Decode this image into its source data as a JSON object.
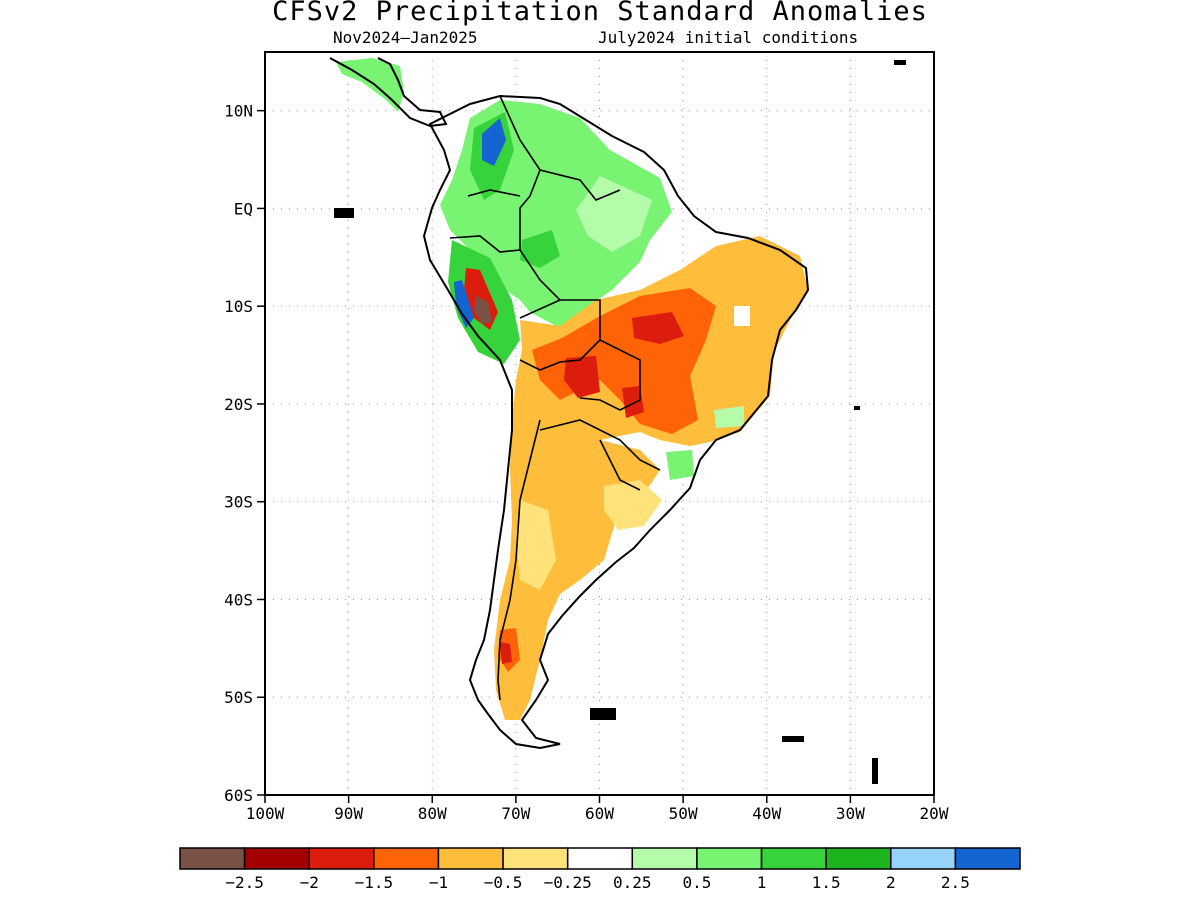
{
  "title": "CFSv2 Precipitation Standard Anomalies",
  "subtitle_left": "Nov2024–Jan2025",
  "subtitle_right": "July2024 initial conditions",
  "map": {
    "lon_range": [
      -100,
      -20
    ],
    "lat_range": [
      -60,
      16
    ],
    "grid": "dotted",
    "lat_ticks": [
      {
        "value": 10,
        "label": "10N"
      },
      {
        "value": 0,
        "label": "EQ"
      },
      {
        "value": -10,
        "label": "10S"
      },
      {
        "value": -20,
        "label": "20S"
      },
      {
        "value": -30,
        "label": "30S"
      },
      {
        "value": -40,
        "label": "40S"
      },
      {
        "value": -50,
        "label": "50S"
      },
      {
        "value": -60,
        "label": "60S"
      }
    ],
    "lon_ticks": [
      {
        "value": -100,
        "label": "100W"
      },
      {
        "value": -90,
        "label": "90W"
      },
      {
        "value": -80,
        "label": "80W"
      },
      {
        "value": -70,
        "label": "70W"
      },
      {
        "value": -60,
        "label": "60W"
      },
      {
        "value": -50,
        "label": "50W"
      },
      {
        "value": -40,
        "label": "40W"
      },
      {
        "value": -30,
        "label": "30W"
      },
      {
        "value": -20,
        "label": "20W"
      }
    ]
  },
  "colorbar": {
    "colors": [
      "#7a5245",
      "#a40000",
      "#dc1c0c",
      "#fe6308",
      "#ffbd3c",
      "#ffe27a",
      "#ffffff",
      "#b4fbaa",
      "#78f472",
      "#37d33c",
      "#1eb41e",
      "#96d2fa",
      "#1464d2"
    ],
    "labels": [
      "−2.5",
      "−2",
      "−1.5",
      "−1",
      "−0.5",
      "−0.25",
      "0.25",
      "0.5",
      "1",
      "1.5",
      "2",
      "2.5"
    ]
  }
}
